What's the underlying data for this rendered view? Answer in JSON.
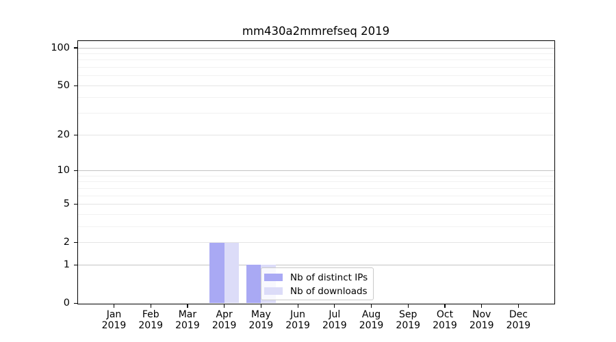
{
  "chart_data": {
    "type": "bar",
    "title": "mm430a2mmrefseq 2019",
    "categories": [
      "Jan 2019",
      "Feb 2019",
      "Mar 2019",
      "Apr 2019",
      "May 2019",
      "Jun 2019",
      "Jul 2019",
      "Aug 2019",
      "Sep 2019",
      "Oct 2019",
      "Nov 2019",
      "Dec 2019"
    ],
    "series": [
      {
        "name": "Nb of distinct IPs",
        "color": "#a9a9f4",
        "values": [
          0,
          0,
          0,
          2,
          1,
          0,
          0,
          0,
          0,
          0,
          0,
          0
        ]
      },
      {
        "name": "Nb of downloads",
        "color": "#dcdcf8",
        "values": [
          0,
          0,
          0,
          2,
          1,
          0,
          0,
          0,
          0,
          0,
          0,
          0
        ]
      }
    ],
    "xlabel": "",
    "ylabel": "",
    "yscale": "log1p",
    "ylim": [
      0,
      113
    ],
    "yticks": [
      0,
      1,
      2,
      5,
      10,
      20,
      50,
      100
    ],
    "grid_decade_lines": [
      1,
      10,
      100
    ],
    "grid_sub_lines": [
      2,
      5,
      20,
      50
    ],
    "grid_minor_lines": [
      3,
      4,
      6,
      7,
      8,
      9,
      30,
      40,
      60,
      70,
      80,
      90
    ],
    "grid": "on",
    "legend_position": "inside-bottom-left-of-center"
  },
  "colors": {
    "bar_distinct_ips": "#a9a9f4",
    "bar_downloads": "#dcdcf8",
    "grid_decade": "#c3c3c3",
    "grid_sub": "#e4e4e4",
    "grid_minor": "#f1f1f1",
    "spine": "#000000",
    "text": "#000000",
    "legend_border": "#c9c9c9",
    "legend_background": "rgba(255,255,255,0.8)"
  }
}
